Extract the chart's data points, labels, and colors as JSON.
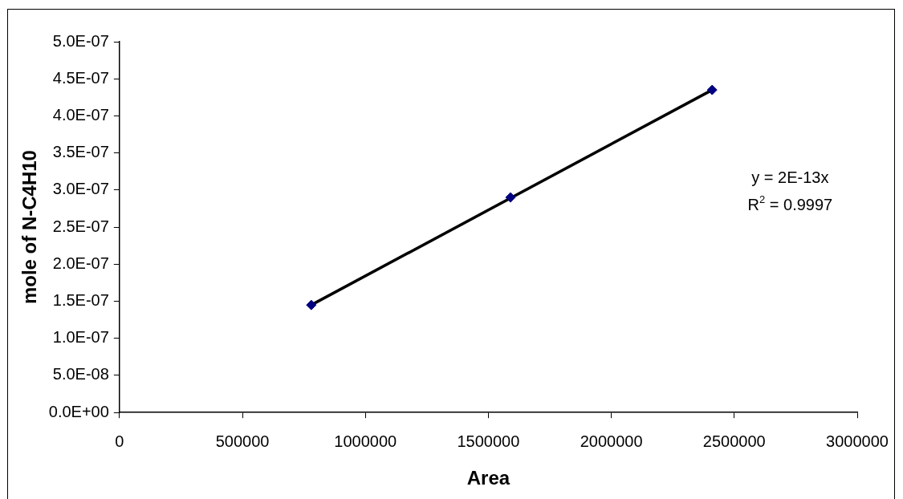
{
  "chart_data": {
    "type": "scatter",
    "xlabel": "Area",
    "ylabel": "mole of N-C4H10",
    "xlim": [
      0,
      3000000
    ],
    "xticks": [
      0,
      500000,
      1000000,
      1500000,
      2000000,
      2500000,
      3000000
    ],
    "ylim": [
      0,
      5e-07
    ],
    "yticks": [
      {
        "value": 0,
        "label": "0.0E+00"
      },
      {
        "value": 5e-08,
        "label": "5.0E-08"
      },
      {
        "value": 1e-07,
        "label": "1.0E-07"
      },
      {
        "value": 1.5e-07,
        "label": "1.5E-07"
      },
      {
        "value": 2e-07,
        "label": "2.0E-07"
      },
      {
        "value": 2.5e-07,
        "label": "2.5E-07"
      },
      {
        "value": 3e-07,
        "label": "3.0E-07"
      },
      {
        "value": 3.5e-07,
        "label": "3.5E-07"
      },
      {
        "value": 4e-07,
        "label": "4.0E-07"
      },
      {
        "value": 4.5e-07,
        "label": "4.5E-07"
      },
      {
        "value": 5e-07,
        "label": "5.0E-07"
      }
    ],
    "series": [
      {
        "type": "line",
        "color": "#000000",
        "x": [
          780000,
          2410000
        ],
        "values": [
          1.45e-07,
          4.35e-07
        ],
        "marker": "none"
      },
      {
        "type": "scatter",
        "color": "#000080",
        "x": [
          780000,
          1590000,
          2410000
        ],
        "values": [
          1.45e-07,
          2.9e-07,
          4.35e-07
        ],
        "marker": "diamond"
      }
    ],
    "annotations": [
      "y = 2E-13x",
      "R$^{2}$ = 0.9997"
    ],
    "grid": false,
    "legend": false
  }
}
